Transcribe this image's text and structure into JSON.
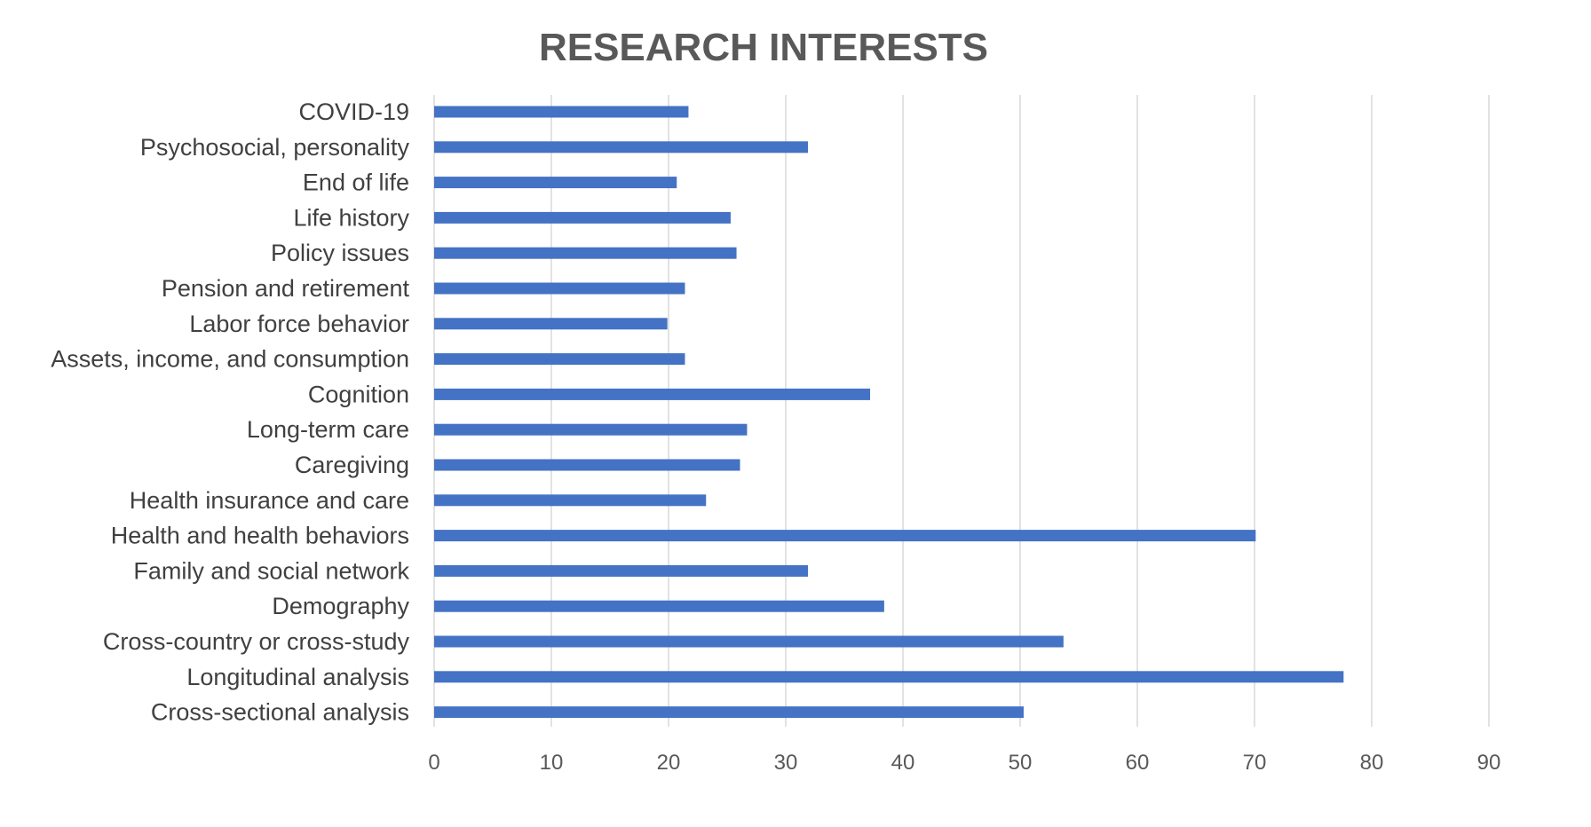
{
  "chart_data": {
    "type": "bar",
    "orientation": "horizontal",
    "title": "RESEARCH INTERESTS",
    "xlabel": "",
    "ylabel": "",
    "categories": [
      "COVID-19",
      "Psychosocial, personality",
      "End of life",
      "Life history",
      "Policy issues",
      "Pension and retirement",
      "Labor force behavior",
      "Assets, income, and consumption",
      "Cognition",
      "Long-term care",
      "Caregiving",
      "Health insurance and care",
      "Health and health behaviors",
      "Family and social network",
      "Demography",
      "Cross-country or cross-study",
      "Longitudinal analysis",
      "Cross-sectional analysis"
    ],
    "values": [
      21.7,
      31.9,
      20.7,
      25.3,
      25.8,
      21.4,
      19.9,
      21.4,
      37.2,
      26.7,
      26.1,
      23.2,
      70.1,
      31.9,
      38.4,
      53.7,
      77.6,
      50.3
    ],
    "xlim": [
      0,
      90
    ],
    "xticks": [
      "0",
      "10",
      "20",
      "30",
      "40",
      "50",
      "60",
      "70",
      "80",
      "90"
    ],
    "grid": "vertical",
    "legend": "none",
    "bar_color": "#4472c4",
    "title_color": "#595959",
    "label_color": "#404040",
    "grid_color": "#d9d9d9"
  }
}
